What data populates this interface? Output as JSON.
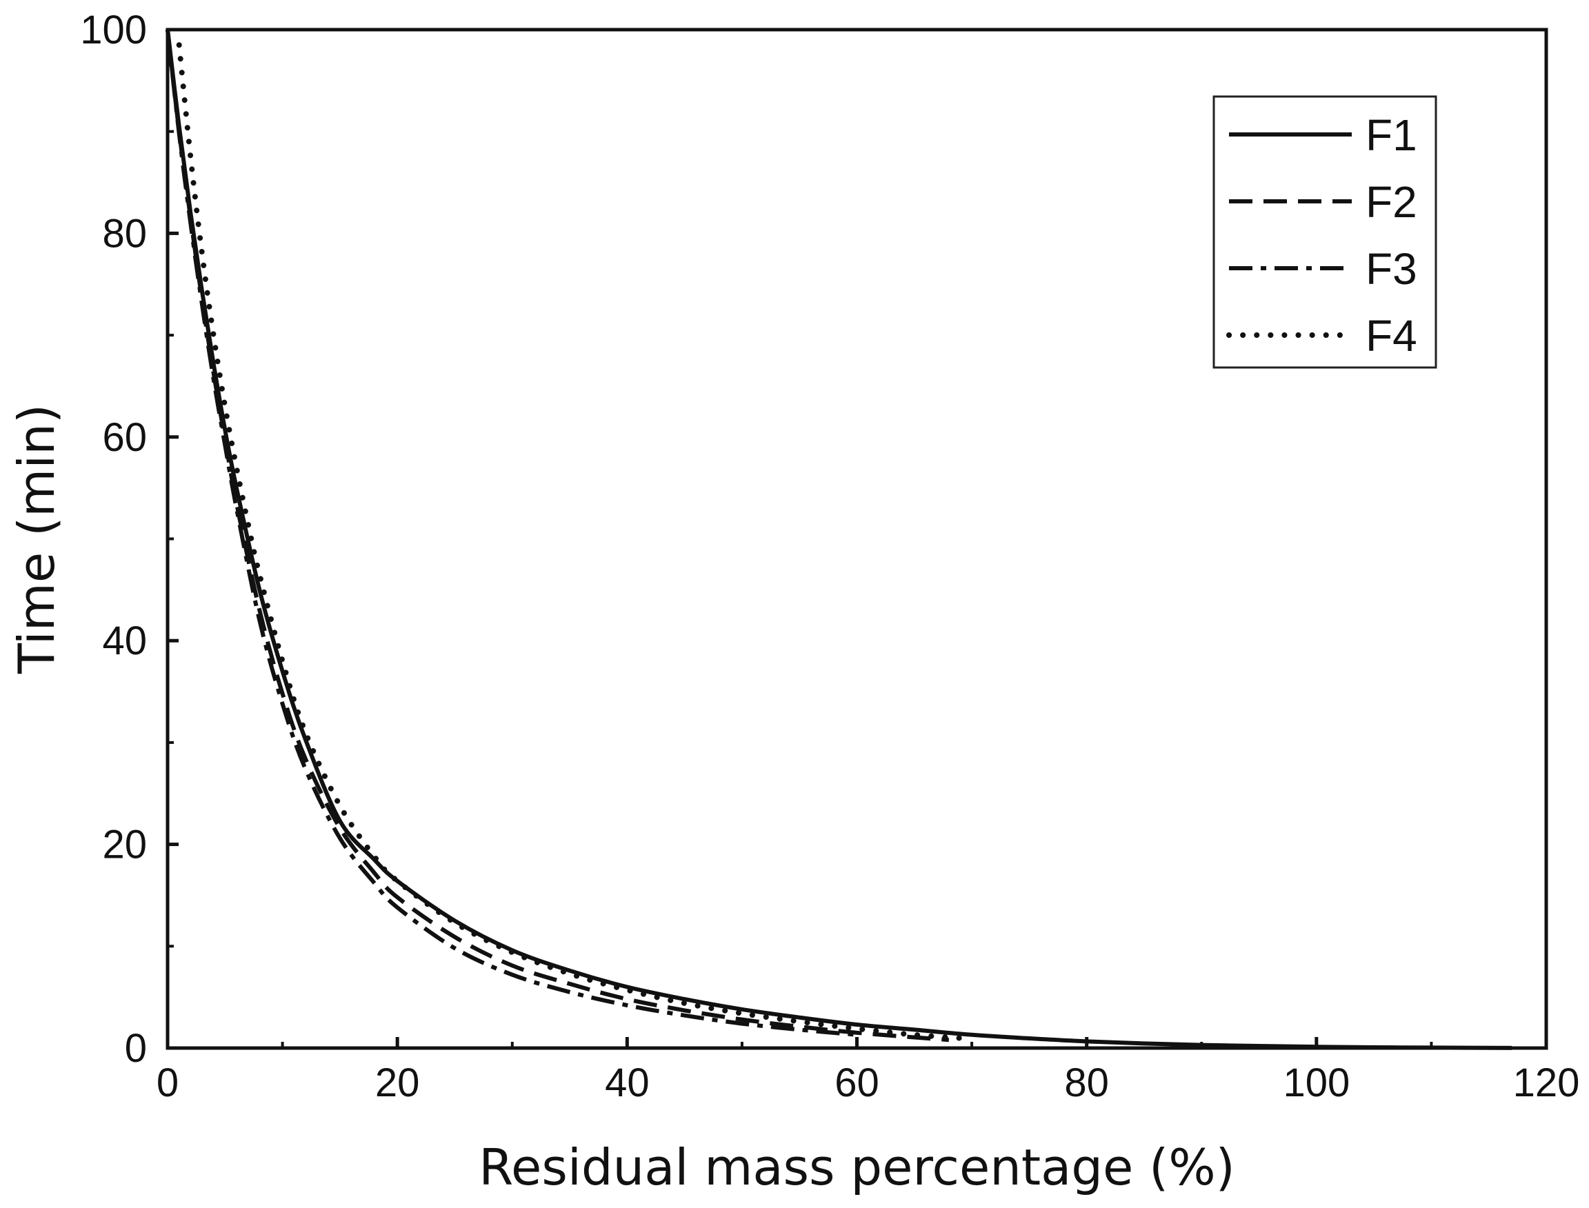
{
  "chart_data": {
    "type": "line",
    "title": "",
    "xlabel": "Residual mass percentage (%)",
    "ylabel": "Time (min)",
    "xlim": [
      0,
      120
    ],
    "ylim": [
      0,
      100
    ],
    "x_ticks": [
      0,
      20,
      40,
      60,
      80,
      100,
      120
    ],
    "y_ticks": [
      0,
      20,
      40,
      60,
      80,
      100
    ],
    "x_minor_ticks": [
      10,
      30,
      50,
      70,
      90,
      110
    ],
    "y_minor_ticks": [
      10,
      30,
      50,
      70,
      90
    ],
    "grid": false,
    "legend_position": "top-right",
    "series": [
      {
        "name": "F1",
        "style": "solid",
        "x": [
          0,
          1,
          2,
          3,
          4,
          5,
          6,
          8,
          10,
          12,
          15,
          18,
          20,
          25,
          30,
          35,
          40,
          45,
          50,
          55,
          60,
          65,
          70,
          75,
          80,
          85,
          90,
          95,
          100,
          105,
          110,
          117
        ],
        "y": [
          100,
          90.5,
          82,
          74.3,
          67.2,
          60.7,
          55,
          45,
          37,
          30.3,
          22.3,
          18.5,
          16.4,
          12.5,
          9.6,
          7.6,
          6.0,
          4.8,
          3.8,
          3.0,
          2.3,
          1.8,
          1.3,
          0.95,
          0.65,
          0.45,
          0.3,
          0.2,
          0.12,
          0.07,
          0.04,
          0.01
        ]
      },
      {
        "name": "F2",
        "style": "dashed",
        "x": [
          0,
          1,
          2,
          3,
          4,
          5,
          6,
          8,
          10,
          12,
          15,
          18,
          20,
          25,
          30,
          35,
          40,
          45,
          50,
          55,
          60,
          65,
          68
        ],
        "y": [
          100,
          90,
          81.5,
          73.5,
          66.3,
          59.8,
          53.5,
          43,
          34.8,
          28.4,
          21.6,
          17.2,
          14.8,
          10.9,
          8.1,
          6.3,
          4.8,
          3.7,
          2.8,
          2.1,
          1.5,
          1.05,
          0.8
        ]
      },
      {
        "name": "F3",
        "style": "dash-dot",
        "x": [
          0,
          1,
          2,
          3,
          4,
          5,
          6,
          8,
          10,
          12,
          15,
          18,
          20,
          25,
          30,
          35,
          40,
          45,
          50,
          55,
          60
        ],
        "y": [
          100,
          89.8,
          81,
          73,
          65.7,
          59.2,
          53,
          42,
          33.8,
          27.4,
          20.6,
          16.2,
          13.8,
          9.8,
          7.2,
          5.5,
          4.2,
          3.2,
          2.4,
          1.8,
          1.3
        ]
      },
      {
        "name": "F4",
        "style": "dotted",
        "x": [
          1,
          2,
          3,
          4,
          5,
          6,
          7,
          8,
          10,
          12,
          15,
          18,
          20,
          25,
          30,
          35,
          40,
          45,
          50,
          55,
          60,
          65,
          70
        ],
        "y": [
          98.5,
          87.5,
          78,
          70,
          63,
          57,
          51.5,
          46.5,
          38,
          31,
          23.8,
          18.8,
          16.4,
          12.3,
          9.4,
          7.3,
          5.7,
          4.4,
          3.4,
          2.6,
          1.9,
          1.3,
          0.9
        ]
      }
    ]
  }
}
